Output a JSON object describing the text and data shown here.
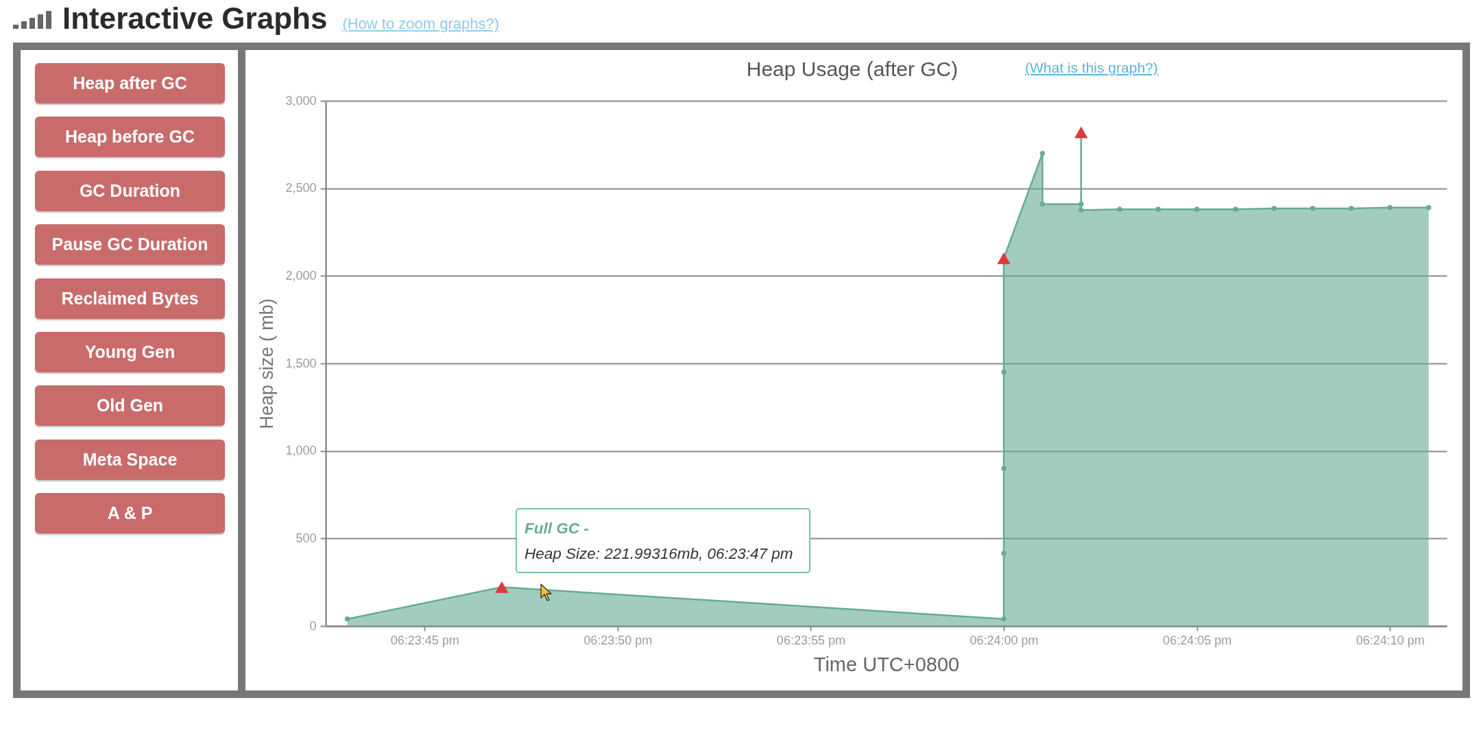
{
  "chart_data": [
    {
      "type": "other",
      "title": "Interactive Graphs",
      "subtitle": "(How to zoom graphs?)",
      "annotations": [
        "Heap after GC",
        "Heap before GC",
        "GC Duration",
        "Pause GC Duration",
        "Reclaimed Bytes",
        "Young Gen",
        "Old Gen",
        "Meta Space",
        "A & P"
      ]
    },
    {
      "type": "area",
      "title": "Heap Usage (after GC)",
      "subtitle": "(What is this graph?)",
      "xlabel": "Time UTC+0800",
      "ylabel": "Heap size ( mb)",
      "xlim": [
        18.395122,
        18.403186
      ],
      "xticks": [
        {
          "value": 18.395833,
          "label": "06:23:45 pm"
        },
        {
          "value": 18.397222,
          "label": "06:23:50 pm"
        },
        {
          "value": 18.398611,
          "label": "06:23:55 pm"
        },
        {
          "value": 18.4,
          "label": "06:24:00 pm"
        },
        {
          "value": 18.401389,
          "label": "06:24:05 pm"
        },
        {
          "value": 18.402778,
          "label": "06:24:10 pm"
        }
      ],
      "ylim": [
        0,
        3000
      ],
      "yticks": [
        0,
        500,
        {
          "value": 1000,
          "label": "1,000"
        },
        {
          "value": 1500,
          "label": "1,500"
        },
        {
          "value": 2000,
          "label": "2,000"
        },
        {
          "value": 2500,
          "label": "2,500"
        },
        {
          "value": 3000,
          "label": "3,000"
        }
      ],
      "grid": "y",
      "series": [
        {
          "type": "area",
          "color": "#66aa96",
          "marker": "circle",
          "x": [
            18.395278,
            18.396389,
            18.4,
            18.4,
            18.4,
            18.4,
            18.4,
            18.400278,
            18.400278,
            18.400556,
            18.400556,
            18.400556,
            18.400833,
            18.401111,
            18.401389,
            18.401667,
            18.401944,
            18.402222,
            18.4025,
            18.402778,
            18.403056
          ],
          "values": [
            40,
            222,
            40,
            415,
            900,
            1450,
            2100,
            2700,
            2410,
            2410,
            2820,
            2375,
            2380,
            2380,
            2380,
            2380,
            2385,
            2385,
            2385,
            2390,
            2390
          ]
        },
        {
          "type": "scatter",
          "color": "#e0393b",
          "marker": "triangle",
          "x": [
            18.396389,
            18.4,
            18.400556
          ],
          "values": [
            222,
            2100,
            2820
          ]
        }
      ],
      "annotations": [
        "Full GC -",
        "Heap Size: 221.99316mb, 06:23:47 pm"
      ]
    }
  ]
}
